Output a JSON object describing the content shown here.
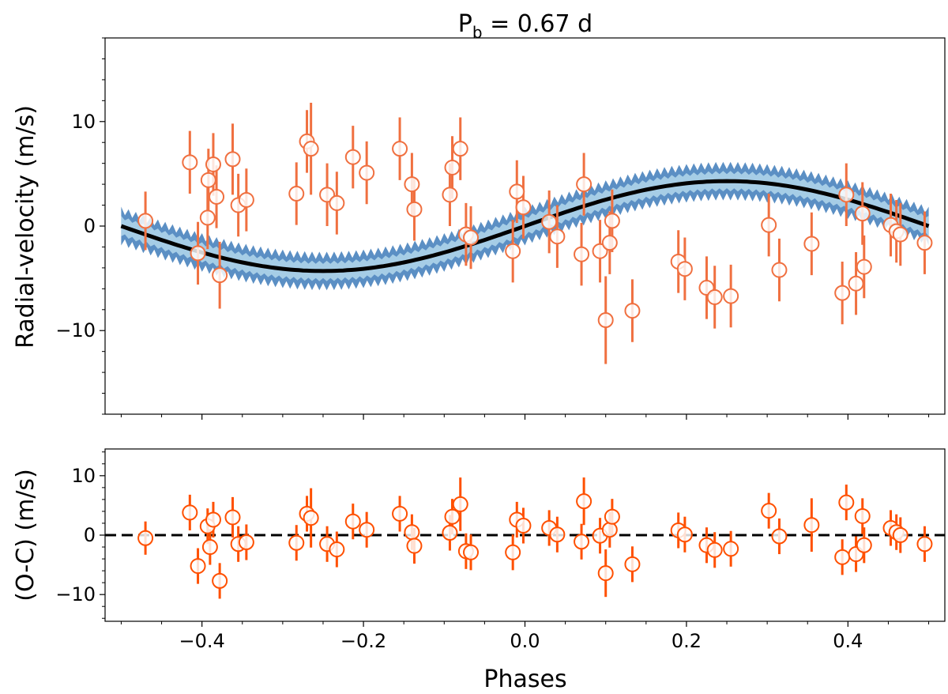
{
  "colors": {
    "point": "#f07040",
    "resid_point": "#ff5000",
    "model_line": "#000000",
    "band_outer": "#5b8fc4",
    "band_inner": "#a6cde6"
  },
  "title": {
    "main": "P",
    "sub": "b",
    "rest": " = 0.67 d"
  },
  "chart_data": [
    {
      "type": "scatter",
      "name": "rv-panel",
      "ylabel": "Radial-velocity (m/s)",
      "xlim": [
        -0.52,
        0.52
      ],
      "ylim": [
        -18,
        18
      ],
      "xticks": [
        -0.4,
        -0.2,
        0.0,
        0.2,
        0.4
      ],
      "yticks": [
        -10,
        0,
        10
      ],
      "ytick_labels": [
        "−10",
        "0",
        "10"
      ],
      "model": {
        "function": "sine",
        "amplitude": 4.3,
        "phase_of_zero": -0.5,
        "band_half_width": 1.5
      },
      "points": [
        {
          "x": -0.47,
          "y": 0.5,
          "err": 2.8
        },
        {
          "x": -0.415,
          "y": 6.1,
          "err": 3.0
        },
        {
          "x": -0.405,
          "y": -2.6,
          "err": 3.0
        },
        {
          "x": -0.393,
          "y": 0.8,
          "err": 3.0
        },
        {
          "x": -0.392,
          "y": 4.4,
          "err": 3.0
        },
        {
          "x": -0.386,
          "y": 5.9,
          "err": 3.0
        },
        {
          "x": -0.382,
          "y": 2.8,
          "err": 3.0
        },
        {
          "x": -0.378,
          "y": -4.7,
          "err": 3.2
        },
        {
          "x": -0.362,
          "y": 6.4,
          "err": 3.4
        },
        {
          "x": -0.355,
          "y": 2.0,
          "err": 3.0
        },
        {
          "x": -0.345,
          "y": 2.5,
          "err": 3.0
        },
        {
          "x": -0.283,
          "y": 3.1,
          "err": 3.0
        },
        {
          "x": -0.27,
          "y": 8.1,
          "err": 3.0
        },
        {
          "x": -0.265,
          "y": 7.4,
          "err": 4.4
        },
        {
          "x": -0.245,
          "y": 3.0,
          "err": 3.0
        },
        {
          "x": -0.233,
          "y": 2.2,
          "err": 3.0
        },
        {
          "x": -0.213,
          "y": 6.6,
          "err": 3.0
        },
        {
          "x": -0.196,
          "y": 5.1,
          "err": 3.0
        },
        {
          "x": -0.155,
          "y": 7.4,
          "err": 3.0
        },
        {
          "x": -0.14,
          "y": 4.0,
          "err": 3.0
        },
        {
          "x": -0.137,
          "y": 1.6,
          "err": 3.0
        },
        {
          "x": -0.09,
          "y": 5.6,
          "err": 3.0
        },
        {
          "x": -0.093,
          "y": 3.0,
          "err": 3.0
        },
        {
          "x": -0.08,
          "y": 7.4,
          "err": 3.0
        },
        {
          "x": -0.073,
          "y": -0.8,
          "err": 3.0
        },
        {
          "x": -0.067,
          "y": -1.1,
          "err": 3.0
        },
        {
          "x": -0.015,
          "y": -2.4,
          "err": 3.0
        },
        {
          "x": -0.01,
          "y": 3.3,
          "err": 3.0
        },
        {
          "x": -0.002,
          "y": 1.8,
          "err": 3.0
        },
        {
          "x": 0.03,
          "y": 0.4,
          "err": 3.0
        },
        {
          "x": 0.04,
          "y": -1.0,
          "err": 3.0
        },
        {
          "x": 0.07,
          "y": -2.7,
          "err": 3.0
        },
        {
          "x": 0.073,
          "y": 4.0,
          "err": 3.0
        },
        {
          "x": 0.093,
          "y": -2.4,
          "err": 3.0
        },
        {
          "x": 0.1,
          "y": -9.0,
          "err": 4.2
        },
        {
          "x": 0.105,
          "y": -1.6,
          "err": 3.0
        },
        {
          "x": 0.108,
          "y": 0.5,
          "err": 3.0
        },
        {
          "x": 0.133,
          "y": -8.1,
          "err": 3.0
        },
        {
          "x": 0.19,
          "y": -3.4,
          "err": 3.0
        },
        {
          "x": 0.198,
          "y": -4.1,
          "err": 3.0
        },
        {
          "x": 0.225,
          "y": -5.9,
          "err": 3.0
        },
        {
          "x": 0.235,
          "y": -6.8,
          "err": 3.0
        },
        {
          "x": 0.255,
          "y": -6.7,
          "err": 3.0
        },
        {
          "x": 0.302,
          "y": 0.1,
          "err": 3.0
        },
        {
          "x": 0.315,
          "y": -4.2,
          "err": 3.0
        },
        {
          "x": 0.355,
          "y": -1.7,
          "err": 3.0
        },
        {
          "x": 0.393,
          "y": -6.4,
          "err": 3.0
        },
        {
          "x": 0.398,
          "y": 3.0,
          "err": 3.0
        },
        {
          "x": 0.41,
          "y": -5.5,
          "err": 3.0
        },
        {
          "x": 0.418,
          "y": 1.2,
          "err": 3.0
        },
        {
          "x": 0.42,
          "y": -3.9,
          "err": 3.0
        },
        {
          "x": 0.453,
          "y": 0.1,
          "err": 3.0
        },
        {
          "x": 0.46,
          "y": -0.5,
          "err": 3.0
        },
        {
          "x": 0.465,
          "y": -0.8,
          "err": 3.0
        },
        {
          "x": 0.495,
          "y": -1.6,
          "err": 3.0
        }
      ]
    },
    {
      "type": "scatter",
      "name": "residual-panel",
      "xlabel": "Phases",
      "ylabel": "(O-C) (m/s)",
      "xlim": [
        -0.52,
        0.52
      ],
      "ylim": [
        -14.5,
        14.5
      ],
      "xticks": [
        -0.4,
        -0.2,
        0.0,
        0.2,
        0.4
      ],
      "xtick_labels": [
        "−0.4",
        "−0.2",
        "0.0",
        "0.2",
        "0.4"
      ],
      "yticks": [
        -10,
        0,
        10
      ],
      "ytick_labels": [
        "−10",
        "0",
        "10"
      ],
      "reference_line": 0,
      "points": [
        {
          "x": -0.47,
          "y": -0.5,
          "err": 2.8
        },
        {
          "x": -0.415,
          "y": 3.8,
          "err": 3.0
        },
        {
          "x": -0.405,
          "y": -5.2,
          "err": 3.0
        },
        {
          "x": -0.393,
          "y": 1.5,
          "err": 3.0
        },
        {
          "x": -0.39,
          "y": -2.0,
          "err": 3.0
        },
        {
          "x": -0.386,
          "y": 2.6,
          "err": 3.0
        },
        {
          "x": -0.378,
          "y": -7.7,
          "err": 3.0
        },
        {
          "x": -0.362,
          "y": 3.0,
          "err": 3.4
        },
        {
          "x": -0.355,
          "y": -1.5,
          "err": 3.0
        },
        {
          "x": -0.345,
          "y": -1.2,
          "err": 3.0
        },
        {
          "x": -0.283,
          "y": -1.3,
          "err": 3.0
        },
        {
          "x": -0.27,
          "y": 3.6,
          "err": 3.0
        },
        {
          "x": -0.265,
          "y": 2.9,
          "err": 5.0
        },
        {
          "x": -0.245,
          "y": -1.5,
          "err": 3.0
        },
        {
          "x": -0.233,
          "y": -2.4,
          "err": 3.0
        },
        {
          "x": -0.213,
          "y": 2.3,
          "err": 3.0
        },
        {
          "x": -0.196,
          "y": 0.9,
          "err": 3.0
        },
        {
          "x": -0.155,
          "y": 3.6,
          "err": 3.0
        },
        {
          "x": -0.14,
          "y": 0.5,
          "err": 3.0
        },
        {
          "x": -0.137,
          "y": -1.8,
          "err": 3.0
        },
        {
          "x": -0.093,
          "y": 0.4,
          "err": 3.0
        },
        {
          "x": -0.09,
          "y": 3.1,
          "err": 3.0
        },
        {
          "x": -0.08,
          "y": 5.2,
          "err": 4.5
        },
        {
          "x": -0.073,
          "y": -2.7,
          "err": 3.0
        },
        {
          "x": -0.067,
          "y": -2.9,
          "err": 3.0
        },
        {
          "x": -0.015,
          "y": -2.9,
          "err": 3.0
        },
        {
          "x": -0.01,
          "y": 2.6,
          "err": 3.0
        },
        {
          "x": -0.002,
          "y": 1.6,
          "err": 3.0
        },
        {
          "x": 0.03,
          "y": 1.2,
          "err": 3.0
        },
        {
          "x": 0.04,
          "y": 0.1,
          "err": 3.0
        },
        {
          "x": 0.07,
          "y": -1.1,
          "err": 3.0
        },
        {
          "x": 0.073,
          "y": 5.7,
          "err": 4.0
        },
        {
          "x": 0.093,
          "y": -0.1,
          "err": 3.0
        },
        {
          "x": 0.1,
          "y": -6.4,
          "err": 4.0
        },
        {
          "x": 0.105,
          "y": 0.9,
          "err": 3.0
        },
        {
          "x": 0.108,
          "y": 3.1,
          "err": 3.0
        },
        {
          "x": 0.133,
          "y": -4.9,
          "err": 3.0
        },
        {
          "x": 0.19,
          "y": 0.8,
          "err": 3.0
        },
        {
          "x": 0.198,
          "y": 0.1,
          "err": 3.0
        },
        {
          "x": 0.225,
          "y": -1.7,
          "err": 3.0
        },
        {
          "x": 0.235,
          "y": -2.5,
          "err": 3.0
        },
        {
          "x": 0.255,
          "y": -2.3,
          "err": 3.0
        },
        {
          "x": 0.302,
          "y": 4.1,
          "err": 3.0
        },
        {
          "x": 0.315,
          "y": -0.2,
          "err": 3.0
        },
        {
          "x": 0.355,
          "y": 1.7,
          "err": 4.5
        },
        {
          "x": 0.393,
          "y": -3.7,
          "err": 3.0
        },
        {
          "x": 0.398,
          "y": 5.5,
          "err": 3.0
        },
        {
          "x": 0.41,
          "y": -3.2,
          "err": 3.0
        },
        {
          "x": 0.418,
          "y": 3.2,
          "err": 3.0
        },
        {
          "x": 0.42,
          "y": -1.7,
          "err": 3.0
        },
        {
          "x": 0.453,
          "y": 1.2,
          "err": 3.0
        },
        {
          "x": 0.46,
          "y": 0.5,
          "err": 3.0
        },
        {
          "x": 0.465,
          "y": 0.0,
          "err": 3.0
        },
        {
          "x": 0.495,
          "y": -1.5,
          "err": 3.0
        }
      ]
    }
  ]
}
